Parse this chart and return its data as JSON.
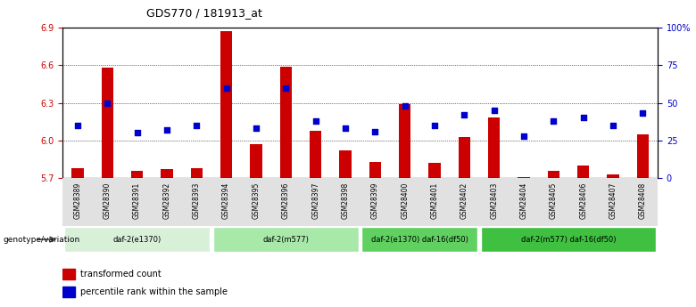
{
  "title": "GDS770 / 181913_at",
  "samples": [
    "GSM28389",
    "GSM28390",
    "GSM28391",
    "GSM28392",
    "GSM28393",
    "GSM28394",
    "GSM28395",
    "GSM28396",
    "GSM28397",
    "GSM28398",
    "GSM28399",
    "GSM28400",
    "GSM28401",
    "GSM28402",
    "GSM28403",
    "GSM28404",
    "GSM28405",
    "GSM28406",
    "GSM28407",
    "GSM28408"
  ],
  "bar_values": [
    5.78,
    6.58,
    5.76,
    5.77,
    5.78,
    6.87,
    5.97,
    6.59,
    6.08,
    5.92,
    5.83,
    6.29,
    5.82,
    6.03,
    6.18,
    5.71,
    5.76,
    5.8,
    5.73,
    6.05
  ],
  "blue_percentiles": [
    35,
    50,
    30,
    32,
    35,
    60,
    33,
    60,
    38,
    33,
    31,
    48,
    35,
    42,
    45,
    28,
    38,
    40,
    35,
    43
  ],
  "ylim_left": [
    5.7,
    6.9
  ],
  "ylim_right": [
    0,
    100
  ],
  "yticks_left": [
    5.7,
    6.0,
    6.3,
    6.6,
    6.9
  ],
  "yticks_right": [
    0,
    25,
    50,
    75,
    100
  ],
  "groups": [
    {
      "label": "daf-2(e1370)",
      "start": 0,
      "end": 5,
      "color": "#d8f0d8"
    },
    {
      "label": "daf-2(m577)",
      "start": 5,
      "end": 10,
      "color": "#a8e8a8"
    },
    {
      "label": "daf-2(e1370) daf-16(df50)",
      "start": 10,
      "end": 14,
      "color": "#60d060"
    },
    {
      "label": "daf-2(m577) daf-16(df50)",
      "start": 14,
      "end": 20,
      "color": "#40c040"
    }
  ],
  "bar_color": "#cc0000",
  "blue_color": "#0000cc",
  "genotype_label": "genotype/variation",
  "legend_items": [
    "transformed count",
    "percentile rank within the sample"
  ]
}
